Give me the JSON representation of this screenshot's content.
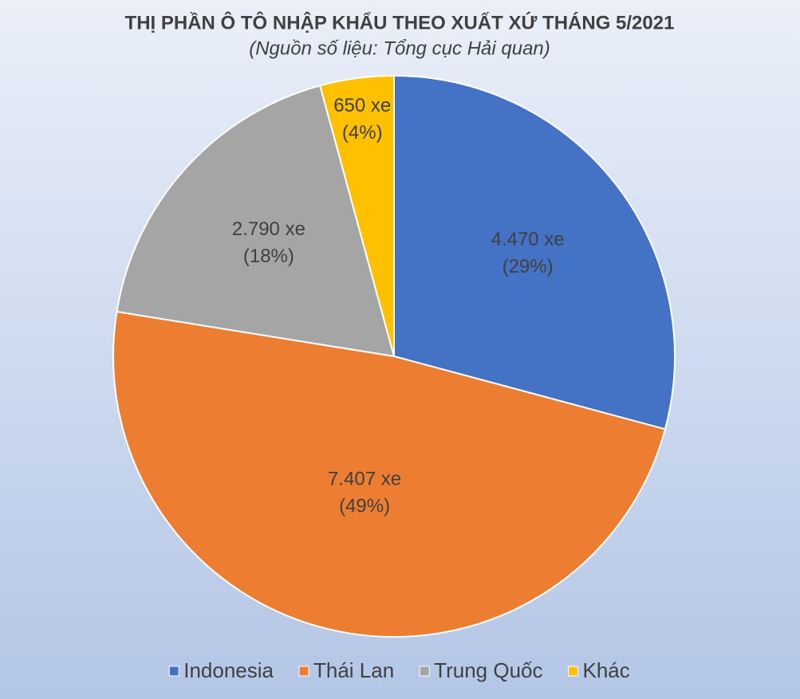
{
  "chart_data": {
    "type": "pie",
    "title": "THỊ PHẦN Ô TÔ NHẬP KHẨU THEO XUẤT XỨ THÁNG 5/2021",
    "subtitle": "(Nguồn số liệu: Tổng cục Hải quan)",
    "categories": [
      "Indonesia",
      "Thái Lan",
      "Trung Quốc",
      "Khác"
    ],
    "values": [
      4470,
      7407,
      2790,
      650
    ],
    "value_labels": [
      "4.470 xe",
      "7.407 xe",
      "2.790 xe",
      "650 xe"
    ],
    "percent_labels": [
      "(29%)",
      "(49%)",
      "(18%)",
      "(4%)"
    ],
    "colors": [
      "#4472c4",
      "#ed7d31",
      "#a5a5a5",
      "#ffc000"
    ],
    "legend": "bottom"
  }
}
